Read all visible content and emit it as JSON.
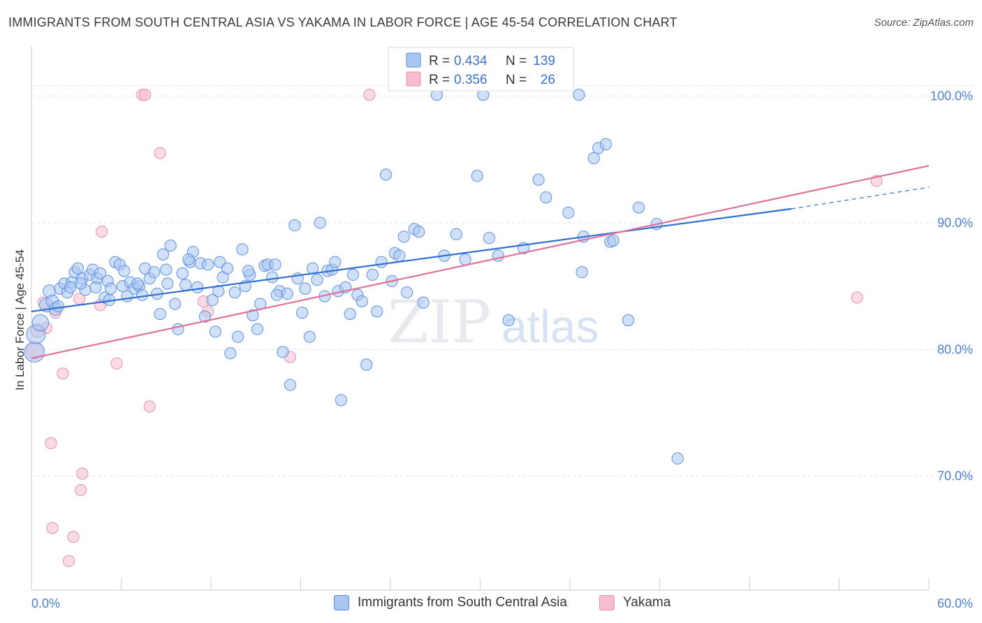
{
  "title": "IMMIGRANTS FROM SOUTH CENTRAL ASIA VS YAKAMA IN LABOR FORCE | AGE 45-54 CORRELATION CHART",
  "source": "Source: ZipAtlas.com",
  "watermark": {
    "zip": "ZIP",
    "atlas": "atlas"
  },
  "colors": {
    "blue_fill": "#a9c6f2",
    "blue_stroke": "#5b8fe0",
    "blue_line": "#2f6fd0",
    "pink_fill": "#f6bdd0",
    "pink_stroke": "#e88fb0",
    "pink_line": "#e0709a",
    "grid": "#dde3ea",
    "axis_text": "#4a7fd0"
  },
  "legend": {
    "rows": [
      {
        "r_label": "R =",
        "r_value": "0.434",
        "n_label": "N =",
        "n_value": "139"
      },
      {
        "r_label": "R =",
        "r_value": "0.356",
        "n_label": "N =",
        "n_value": "26"
      }
    ]
  },
  "bottom_legend": [
    "Immigrants from South Central Asia",
    "Yakama"
  ],
  "chart_data": {
    "type": "scatter",
    "title": "IMMIGRANTS FROM SOUTH CENTRAL ASIA VS YAKAMA IN LABOR FORCE | AGE 45-54 CORRELATION CHART",
    "xlabel": "",
    "ylabel": "In Labor Force | Age 45-54",
    "xlim": [
      0,
      60
    ],
    "ylim": [
      61,
      104
    ],
    "x_tick_labels": [
      "0.0%",
      "60.0%"
    ],
    "y_ticks": [
      70,
      80,
      90,
      100
    ],
    "y_tick_labels": [
      "70.0%",
      "80.0%",
      "90.0%",
      "100.0%"
    ],
    "series": [
      {
        "name": "Immigrants from South Central Asia",
        "color": "#a9c6f2",
        "r": 0.434,
        "n": 139,
        "trend": {
          "x0": 0,
          "y0": 83.0,
          "x1": 50.8,
          "y1": 91.1,
          "dash_to_x": 60,
          "dash_to_y": 92.8
        },
        "points": [
          [
            0.2,
            79.8,
            1.6
          ],
          [
            0.3,
            81.2,
            1.5
          ],
          [
            0.6,
            82.1,
            1.3
          ],
          [
            1.0,
            83.5,
            1.1
          ],
          [
            1.2,
            84.6,
            1.0
          ],
          [
            1.4,
            83.8,
            1.0
          ],
          [
            1.6,
            83.2,
            1.0
          ],
          [
            1.9,
            84.8,
            0.9
          ],
          [
            2.2,
            85.2,
            0.9
          ],
          [
            2.4,
            84.5,
            0.9
          ],
          [
            2.7,
            85.3,
            0.9
          ],
          [
            2.9,
            86.1,
            0.9
          ],
          [
            3.1,
            86.4,
            0.9
          ],
          [
            3.4,
            85.6,
            0.9
          ],
          [
            3.6,
            84.7,
            0.9
          ],
          [
            3.9,
            85.9,
            0.9
          ],
          [
            4.1,
            86.3,
            0.9
          ],
          [
            4.4,
            85.6,
            0.9
          ],
          [
            4.6,
            86.0,
            0.9
          ],
          [
            4.9,
            84.1,
            0.9
          ],
          [
            5.1,
            85.4,
            0.9
          ],
          [
            5.3,
            84.8,
            0.9
          ],
          [
            5.6,
            86.9,
            0.9
          ],
          [
            5.9,
            86.7,
            0.9
          ],
          [
            6.1,
            85.0,
            0.9
          ],
          [
            6.4,
            84.2,
            0.9
          ],
          [
            6.6,
            85.3,
            0.9
          ],
          [
            6.9,
            84.8,
            0.9
          ],
          [
            7.2,
            85.0,
            0.9
          ],
          [
            7.4,
            84.3,
            0.9
          ],
          [
            7.6,
            86.4,
            0.9
          ],
          [
            7.9,
            85.6,
            0.9
          ],
          [
            8.2,
            86.1,
            0.9
          ],
          [
            8.4,
            84.4,
            0.9
          ],
          [
            8.6,
            82.8,
            0.9
          ],
          [
            8.8,
            87.5,
            0.9
          ],
          [
            9.1,
            85.2,
            0.9
          ],
          [
            9.3,
            88.2,
            0.9
          ],
          [
            9.6,
            83.6,
            0.9
          ],
          [
            9.8,
            81.6,
            0.9
          ],
          [
            10.1,
            86.0,
            0.9
          ],
          [
            10.3,
            85.1,
            0.9
          ],
          [
            10.6,
            86.9,
            0.9
          ],
          [
            10.8,
            87.7,
            0.9
          ],
          [
            11.1,
            84.9,
            0.9
          ],
          [
            11.3,
            86.8,
            0.9
          ],
          [
            11.6,
            82.6,
            0.9
          ],
          [
            11.8,
            86.7,
            0.9
          ],
          [
            12.1,
            83.9,
            0.9
          ],
          [
            12.3,
            81.4,
            0.9
          ],
          [
            12.6,
            86.9,
            0.9
          ],
          [
            12.8,
            85.7,
            0.9
          ],
          [
            13.1,
            86.4,
            0.9
          ],
          [
            13.3,
            79.7,
            0.9
          ],
          [
            13.6,
            84.5,
            0.9
          ],
          [
            13.8,
            81.0,
            0.9
          ],
          [
            14.1,
            87.9,
            0.9
          ],
          [
            14.3,
            85.0,
            0.9
          ],
          [
            14.6,
            85.9,
            0.9
          ],
          [
            14.8,
            82.7,
            0.9
          ],
          [
            15.1,
            81.6,
            0.9
          ],
          [
            15.3,
            83.6,
            0.9
          ],
          [
            15.6,
            86.6,
            0.9
          ],
          [
            15.8,
            86.7,
            0.9
          ],
          [
            16.1,
            85.7,
            0.9
          ],
          [
            16.3,
            86.7,
            0.9
          ],
          [
            16.6,
            84.6,
            0.9
          ],
          [
            16.8,
            79.8,
            0.9
          ],
          [
            17.1,
            84.4,
            0.9
          ],
          [
            17.3,
            77.2,
            0.9
          ],
          [
            17.6,
            89.8,
            0.9
          ],
          [
            17.8,
            85.6,
            0.9
          ],
          [
            18.1,
            82.9,
            0.9
          ],
          [
            18.3,
            84.8,
            0.9
          ],
          [
            18.6,
            81.0,
            0.9
          ],
          [
            18.8,
            86.4,
            0.9
          ],
          [
            19.1,
            85.5,
            0.9
          ],
          [
            19.3,
            90.0,
            0.9
          ],
          [
            19.6,
            84.2,
            0.9
          ],
          [
            19.8,
            86.2,
            0.9
          ],
          [
            20.1,
            86.3,
            0.9
          ],
          [
            20.3,
            86.9,
            0.9
          ],
          [
            20.5,
            84.6,
            0.9
          ],
          [
            20.7,
            76.0,
            0.9
          ],
          [
            21.0,
            84.9,
            0.9
          ],
          [
            21.3,
            82.8,
            0.9
          ],
          [
            21.5,
            85.9,
            0.9
          ],
          [
            21.8,
            84.3,
            0.9
          ],
          [
            22.1,
            83.8,
            0.9
          ],
          [
            22.4,
            78.8,
            0.9
          ],
          [
            22.8,
            85.9,
            0.9
          ],
          [
            23.1,
            83.0,
            0.9
          ],
          [
            23.4,
            86.9,
            0.9
          ],
          [
            23.7,
            93.8,
            0.9
          ],
          [
            24.1,
            85.4,
            0.9
          ],
          [
            24.3,
            87.6,
            0.9
          ],
          [
            24.6,
            87.4,
            0.9
          ],
          [
            24.9,
            88.9,
            0.9
          ],
          [
            25.1,
            84.5,
            0.9
          ],
          [
            25.6,
            89.5,
            0.9
          ],
          [
            25.9,
            89.3,
            0.9
          ],
          [
            26.2,
            83.7,
            0.9
          ],
          [
            27.1,
            100.1,
            0.9
          ],
          [
            27.6,
            87.4,
            0.9
          ],
          [
            28.4,
            89.1,
            0.9
          ],
          [
            29.0,
            87.1,
            0.9
          ],
          [
            29.8,
            93.7,
            0.9
          ],
          [
            30.2,
            100.1,
            0.9
          ],
          [
            30.6,
            88.8,
            0.9
          ],
          [
            31.2,
            87.4,
            0.9
          ],
          [
            31.9,
            82.3,
            0.9
          ],
          [
            32.9,
            88.0,
            0.9
          ],
          [
            33.9,
            93.4,
            0.9
          ],
          [
            34.4,
            92.0,
            0.9
          ],
          [
            35.9,
            90.8,
            0.9
          ],
          [
            36.6,
            100.1,
            0.9
          ],
          [
            36.8,
            86.1,
            0.9
          ],
          [
            36.9,
            88.9,
            0.9
          ],
          [
            37.6,
            95.1,
            0.9
          ],
          [
            37.9,
            95.9,
            0.9
          ],
          [
            38.4,
            96.2,
            0.9
          ],
          [
            38.7,
            88.5,
            0.9
          ],
          [
            38.9,
            88.6,
            0.9
          ],
          [
            39.9,
            82.3,
            0.9
          ],
          [
            40.6,
            91.2,
            0.9
          ],
          [
            41.8,
            89.9,
            0.9
          ],
          [
            43.2,
            71.4,
            0.9
          ],
          [
            1.8,
            83.4,
            0.9
          ],
          [
            2.6,
            84.9,
            0.9
          ],
          [
            3.3,
            85.2,
            0.9
          ],
          [
            4.3,
            84.9,
            0.9
          ],
          [
            5.2,
            83.9,
            0.9
          ],
          [
            6.2,
            86.2,
            0.9
          ],
          [
            7.1,
            85.2,
            0.9
          ],
          [
            9.0,
            86.3,
            0.9
          ],
          [
            10.5,
            87.1,
            0.9
          ],
          [
            12.5,
            84.6,
            0.9
          ],
          [
            14.5,
            86.2,
            0.9
          ],
          [
            16.4,
            84.3,
            0.9
          ]
        ]
      },
      {
        "name": "Yakama",
        "color": "#f6bdd0",
        "r": 0.356,
        "n": 26,
        "trend": {
          "x0": 0,
          "y0": 79.3,
          "x1": 60,
          "y1": 94.5
        },
        "points": [
          [
            0.2,
            79.9,
            1.3
          ],
          [
            0.4,
            81.5,
            1.1
          ],
          [
            0.8,
            83.7,
            0.9
          ],
          [
            1.0,
            81.7,
            0.9
          ],
          [
            1.3,
            72.6,
            0.9
          ],
          [
            1.4,
            65.9,
            0.9
          ],
          [
            1.6,
            82.9,
            0.9
          ],
          [
            2.1,
            78.1,
            0.9
          ],
          [
            2.8,
            65.2,
            0.9
          ],
          [
            3.2,
            84.0,
            0.9
          ],
          [
            3.3,
            68.9,
            0.9
          ],
          [
            3.4,
            70.2,
            0.9
          ],
          [
            2.5,
            63.3,
            0.9
          ],
          [
            4.6,
            83.5,
            0.9
          ],
          [
            4.7,
            89.3,
            0.9
          ],
          [
            5.7,
            78.9,
            0.9
          ],
          [
            7.4,
            100.1,
            0.9
          ],
          [
            7.6,
            100.1,
            0.9
          ],
          [
            7.9,
            75.5,
            0.9
          ],
          [
            8.6,
            95.5,
            0.9
          ],
          [
            11.5,
            83.8,
            0.9
          ],
          [
            11.8,
            83.0,
            0.9
          ],
          [
            17.3,
            79.4,
            0.9
          ],
          [
            22.6,
            100.1,
            0.9
          ],
          [
            55.2,
            84.1,
            0.9
          ],
          [
            56.5,
            93.3,
            0.9
          ]
        ]
      }
    ]
  }
}
